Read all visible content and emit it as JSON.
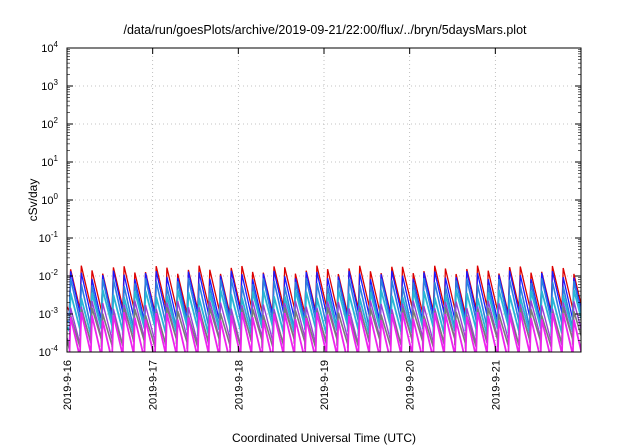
{
  "chart_data": {
    "type": "line",
    "title": "/data/run/goesPlots/archive/2019-09-21/22:00/flux/../bryn/5daysMars.plot",
    "xlabel": "Coordinated Universal Time (UTC)",
    "ylabel": "cSv/day",
    "yscale": "log",
    "ylim": [
      0.0001,
      10000
    ],
    "xlim": [
      "2019-09-16",
      "2019-09-22"
    ],
    "grid": true,
    "x_ticks": [
      "2019-9-16",
      "2019-9-17",
      "2019-9-18",
      "2019-9-19",
      "2019-9-20",
      "2019-9-21"
    ],
    "y_ticks": [
      {
        "value": 0.0001,
        "base": "10",
        "exp": "-4"
      },
      {
        "value": 0.001,
        "base": "10",
        "exp": "-3"
      },
      {
        "value": 0.01,
        "base": "10",
        "exp": "-2"
      },
      {
        "value": 0.1,
        "base": "10",
        "exp": "-1"
      },
      {
        "value": 1,
        "base": "10",
        "exp": "0"
      },
      {
        "value": 10,
        "base": "10",
        "exp": "1"
      },
      {
        "value": 100,
        "base": "10",
        "exp": "2"
      },
      {
        "value": 1000,
        "base": "10",
        "exp": "3"
      },
      {
        "value": 10000,
        "base": "10",
        "exp": "4"
      }
    ],
    "pattern": {
      "sawtooth_period_days": 0.125,
      "peak_dates": [
        "2019-09-16 01:00",
        "2019-09-16 04:00",
        "2019-09-16 07:00",
        "2019-09-16 10:00",
        "2019-09-16 13:00",
        "2019-09-16 16:00",
        "2019-09-16 19:00",
        "2019-09-16 22:00",
        "2019-09-17 01:00",
        "2019-09-17 04:00",
        "2019-09-17 07:00",
        "2019-09-17 10:00",
        "2019-09-17 13:00",
        "2019-09-17 16:00",
        "2019-09-17 19:00",
        "2019-09-17 22:00",
        "2019-09-18 01:00",
        "2019-09-18 04:00",
        "2019-09-18 07:00",
        "2019-09-18 10:00",
        "2019-09-18 13:00",
        "2019-09-18 16:00",
        "2019-09-18 19:00",
        "2019-09-18 22:00",
        "2019-09-19 01:00",
        "2019-09-19 04:00",
        "2019-09-19 07:00",
        "2019-09-19 10:00",
        "2019-09-19 13:00",
        "2019-09-19 16:00",
        "2019-09-19 19:00",
        "2019-09-19 22:00",
        "2019-09-20 01:00",
        "2019-09-20 04:00",
        "2019-09-20 07:00",
        "2019-09-20 10:00",
        "2019-09-20 13:00",
        "2019-09-20 16:00",
        "2019-09-20 19:00",
        "2019-09-20 22:00",
        "2019-09-21 01:00",
        "2019-09-21 04:00",
        "2019-09-21 07:00",
        "2019-09-21 10:00",
        "2019-09-21 13:00",
        "2019-09-21 16:00",
        "2019-09-21 19:00",
        "2019-09-21 22:00"
      ]
    },
    "series": [
      {
        "color": "#dd0000",
        "width": 1.3,
        "peak": 0.015,
        "trough": 0.0012
      },
      {
        "color": "#1a1aff",
        "width": 1.3,
        "peak": 0.011,
        "trough": 0.0008
      },
      {
        "color": "#2b7fe0",
        "width": 1.6,
        "peak": 0.007,
        "trough": 0.0005
      },
      {
        "color": "#29b6d6",
        "width": 1.8,
        "peak": 0.0035,
        "trough": 0.00035
      },
      {
        "color": "#9a3fd6",
        "width": 1.4,
        "peak": 0.0018,
        "trough": 0.00018
      },
      {
        "color": "#7a7a7a",
        "width": 1.6,
        "peak": 0.0012,
        "trough": 0.00016
      },
      {
        "color": "#ee22ee",
        "width": 1.8,
        "peak": 0.0009,
        "trough": 7e-05
      }
    ]
  }
}
